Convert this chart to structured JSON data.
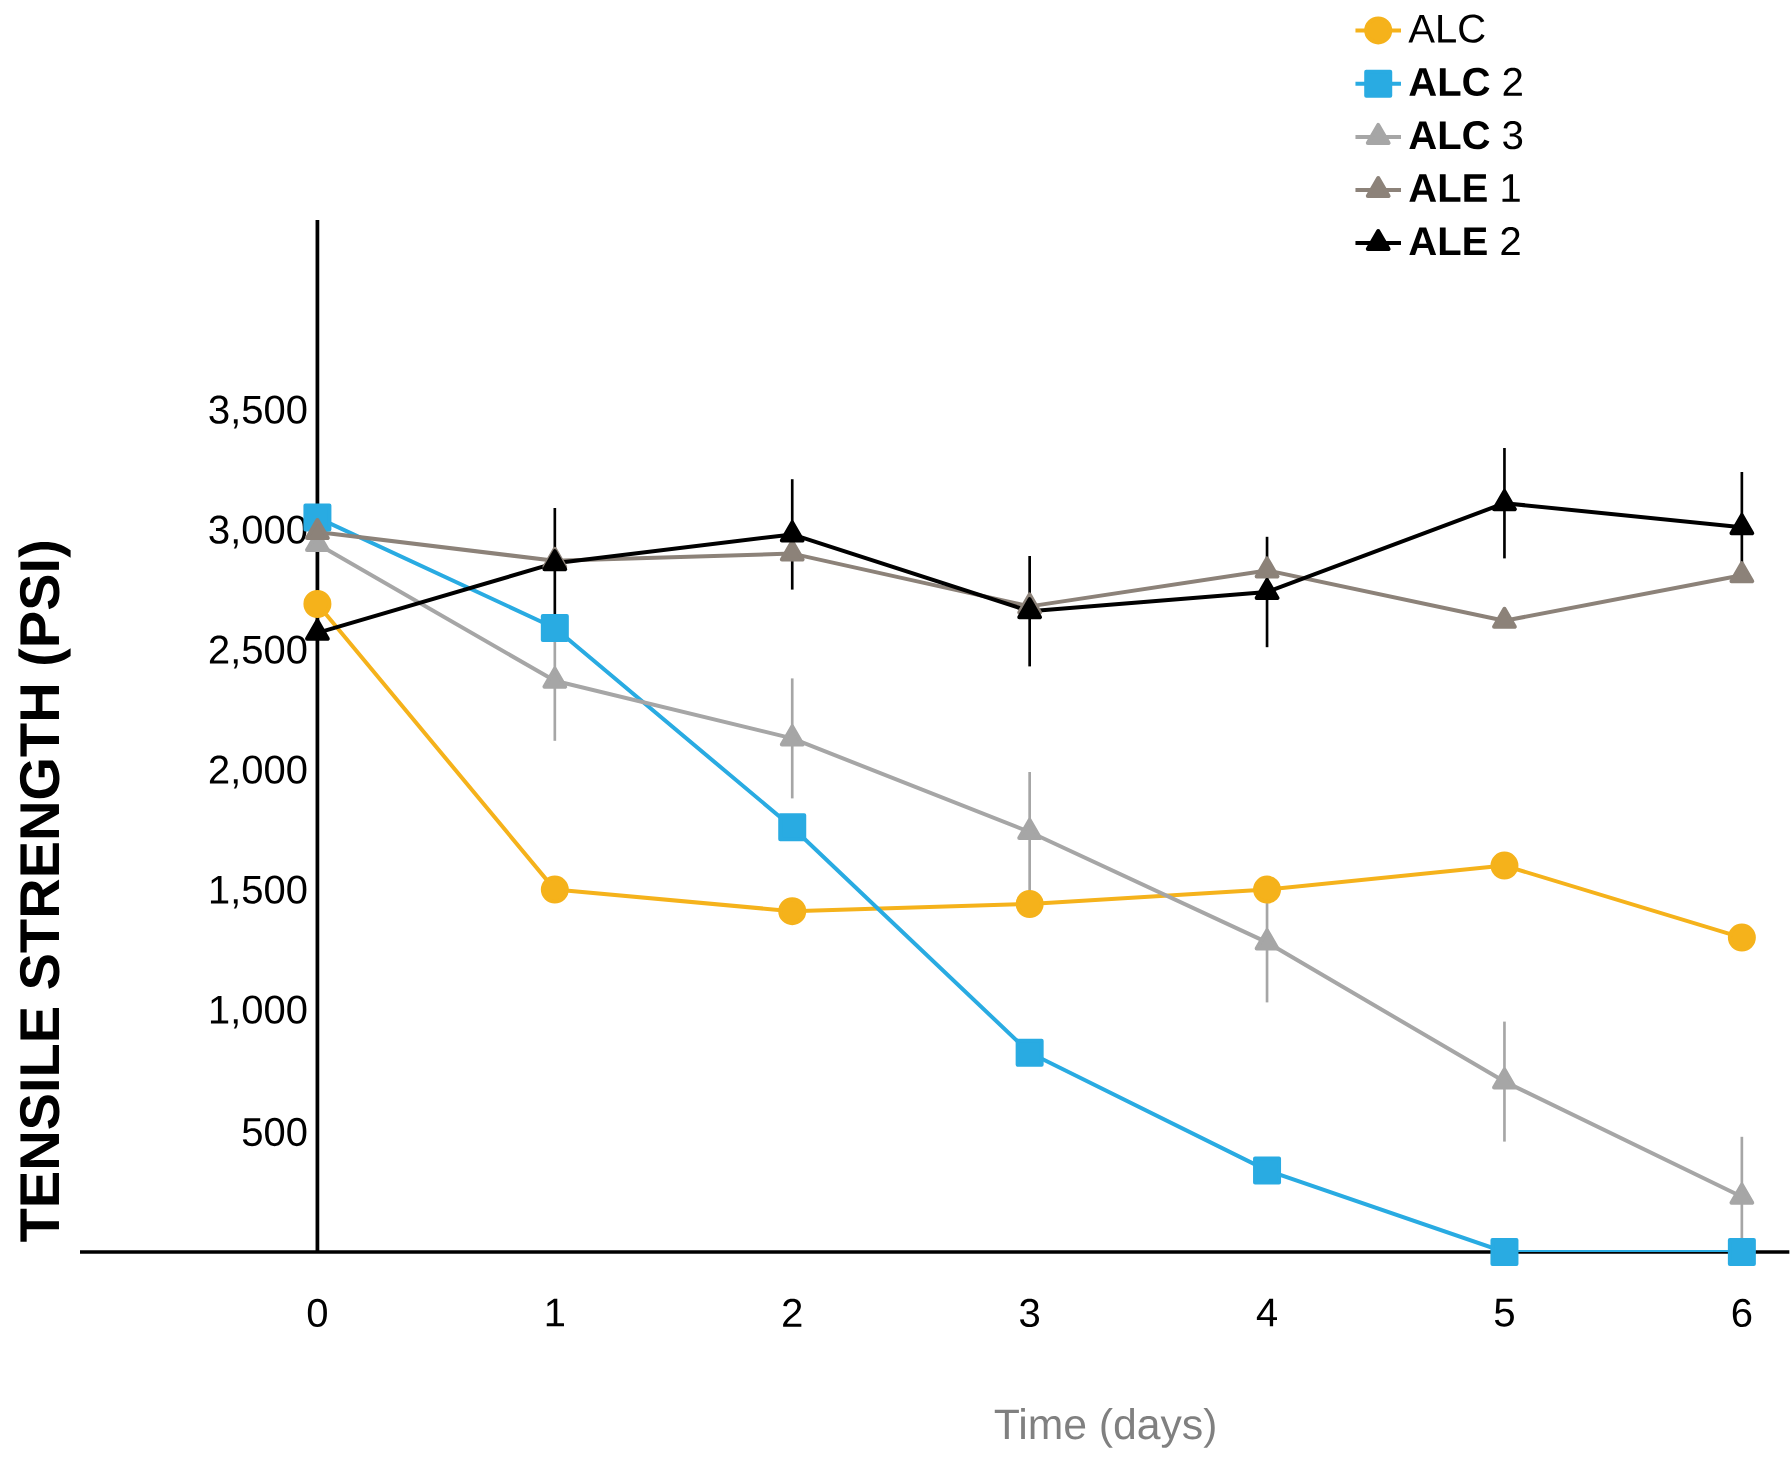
{
  "chart_data": {
    "type": "line",
    "xlabel": "Time (days)",
    "ylabel": "TENSILE STRENGTH (PSI)",
    "x": [
      0,
      1,
      2,
      3,
      4,
      5,
      6
    ],
    "xlim": [
      -1,
      6.2
    ],
    "ylim": [
      0,
      4300
    ],
    "xticks": [
      0,
      1,
      2,
      3,
      4,
      5,
      6
    ],
    "yticks": [
      {
        "value": 500,
        "label": "500"
      },
      {
        "value": 1000,
        "label": "1,000"
      },
      {
        "value": 1500,
        "label": "1,500"
      },
      {
        "value": 2000,
        "label": "2,000"
      },
      {
        "value": 2500,
        "label": "2,500"
      },
      {
        "value": 3000,
        "label": "3,000"
      },
      {
        "value": 3500,
        "label": "3,500"
      }
    ],
    "grid": false,
    "legend": "top right",
    "series": [
      {
        "name": "ALC",
        "color": "#f5b21b",
        "marker": "circle",
        "values": [
          2700,
          1510,
          1420,
          1450,
          1510,
          1610,
          1310
        ]
      },
      {
        "name": "**ALC** 2",
        "color": "#29abe2",
        "marker": "square",
        "values": [
          3060,
          2600,
          1770,
          830,
          340,
          0,
          0
        ]
      },
      {
        "name": "**ALC** 3",
        "color": "#a6a6a6",
        "marker": "triangle",
        "values": [
          2950,
          2380,
          2140,
          1750,
          1290,
          710,
          230
        ],
        "errors": [
          null,
          250,
          250,
          250,
          250,
          250,
          250
        ]
      },
      {
        "name": "**ALE** 1",
        "color": "#8c8279",
        "marker": "triangle",
        "values": [
          3000,
          2880,
          2910,
          2690,
          2840,
          2630,
          2820
        ]
      },
      {
        "name": "**ALE** 2",
        "color": "#000000",
        "marker": "triangle",
        "values": [
          2580,
          2870,
          2990,
          2670,
          2750,
          3120,
          3020
        ],
        "errors": [
          null,
          230,
          230,
          230,
          230,
          230,
          230
        ]
      }
    ]
  }
}
